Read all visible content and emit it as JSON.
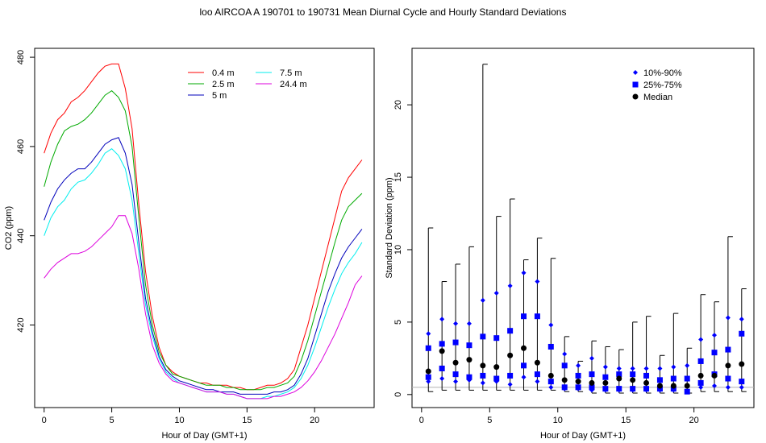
{
  "title": "loo   AIRCOA A   190701 to 190731   Mean Diurnal Cycle and Hourly Standard Deviations",
  "chart_data": [
    {
      "type": "line",
      "xlabel": "Hour of Day (GMT+1)",
      "ylabel": "CO2 (ppm)",
      "xlim": [
        -0.7,
        24.4
      ],
      "ylim": [
        401.5,
        482
      ],
      "xticks": [
        0,
        5,
        10,
        15,
        20
      ],
      "yticks": [
        420,
        440,
        460,
        480
      ],
      "grid": false,
      "legend_position": "top-right",
      "legend_columns": 2,
      "hours": [
        0.0,
        0.5,
        1.0,
        1.5,
        2.0,
        2.5,
        3.0,
        3.5,
        4.0,
        4.5,
        5.0,
        5.5,
        6.0,
        6.5,
        7.0,
        7.5,
        8.0,
        8.5,
        9.0,
        9.5,
        10.0,
        10.5,
        11.0,
        11.5,
        12.0,
        12.5,
        13.0,
        13.5,
        14.0,
        14.5,
        15.0,
        15.5,
        16.0,
        16.5,
        17.0,
        17.5,
        18.0,
        18.5,
        19.0,
        19.5,
        20.0,
        20.5,
        21.0,
        21.5,
        22.0,
        22.5,
        23.0,
        23.5
      ],
      "series": [
        {
          "name": "0.4 m",
          "color": "#ff0000",
          "values": [
            458.5,
            463.0,
            466.0,
            467.5,
            470.0,
            471.0,
            472.5,
            474.5,
            476.5,
            478.0,
            478.5,
            478.5,
            473.0,
            464.0,
            447.0,
            432.0,
            422.0,
            415.0,
            411.0,
            409.5,
            408.5,
            408.0,
            407.5,
            407.0,
            407.0,
            406.5,
            406.5,
            406.5,
            406.0,
            406.0,
            405.5,
            405.5,
            406.0,
            406.5,
            406.5,
            407.0,
            408.0,
            410.0,
            415.0,
            420.0,
            426.0,
            432.0,
            438.0,
            444.0,
            450.0,
            453.0,
            455.0,
            457.0
          ]
        },
        {
          "name": "2.5 m",
          "color": "#00aa00",
          "values": [
            451.0,
            456.5,
            460.5,
            463.5,
            464.5,
            465.0,
            466.0,
            467.5,
            469.5,
            471.5,
            472.5,
            471.0,
            468.0,
            460.0,
            444.0,
            429.0,
            420.0,
            414.0,
            411.0,
            409.0,
            408.5,
            408.0,
            407.5,
            407.0,
            406.5,
            406.5,
            406.5,
            406.0,
            406.0,
            405.5,
            405.5,
            405.5,
            405.5,
            406.0,
            406.0,
            406.5,
            407.0,
            408.5,
            412.0,
            416.5,
            422.0,
            427.5,
            433.0,
            438.5,
            443.5,
            446.5,
            448.0,
            449.5
          ]
        },
        {
          "name": "5 m",
          "color": "#0000bb",
          "values": [
            443.5,
            447.5,
            450.5,
            452.5,
            454.0,
            455.0,
            455.0,
            456.5,
            458.5,
            460.5,
            461.5,
            462.0,
            458.5,
            451.5,
            438.5,
            426.0,
            418.5,
            413.0,
            410.0,
            408.5,
            407.5,
            407.0,
            406.5,
            406.0,
            405.5,
            405.5,
            405.0,
            405.0,
            405.0,
            404.5,
            404.5,
            404.5,
            404.5,
            404.5,
            405.0,
            405.0,
            405.5,
            406.5,
            409.0,
            412.5,
            417.5,
            422.5,
            427.5,
            431.5,
            435.0,
            437.5,
            439.5,
            441.5
          ]
        },
        {
          "name": "7.5 m",
          "color": "#00eeee",
          "values": [
            440.0,
            444.0,
            446.5,
            448.0,
            450.5,
            452.0,
            452.5,
            454.0,
            456.0,
            458.5,
            459.5,
            458.0,
            455.0,
            448.0,
            436.0,
            424.5,
            417.5,
            412.5,
            409.5,
            408.0,
            407.0,
            406.5,
            406.0,
            405.5,
            405.0,
            405.0,
            405.0,
            404.5,
            404.5,
            404.0,
            403.5,
            403.5,
            403.5,
            404.0,
            404.0,
            404.5,
            405.0,
            406.0,
            408.0,
            411.0,
            415.0,
            419.5,
            424.0,
            428.0,
            431.5,
            434.0,
            436.0,
            438.5
          ]
        },
        {
          "name": "24.4 m",
          "color": "#dd00dd",
          "values": [
            430.5,
            432.5,
            434.0,
            435.0,
            436.0,
            436.0,
            436.5,
            437.5,
            439.0,
            440.5,
            442.0,
            444.5,
            444.5,
            440.5,
            432.5,
            422.5,
            415.5,
            411.5,
            409.0,
            407.5,
            407.0,
            406.5,
            406.0,
            405.5,
            405.0,
            405.0,
            405.0,
            404.5,
            404.5,
            404.0,
            403.5,
            403.5,
            403.5,
            403.5,
            404.0,
            404.0,
            404.5,
            405.0,
            406.0,
            407.5,
            409.5,
            412.0,
            415.0,
            418.0,
            421.5,
            425.0,
            429.0,
            431.0
          ]
        }
      ]
    },
    {
      "type": "scatter",
      "xlabel": "Hour of Day (GMT+1)",
      "ylabel": "Standard Deviation (ppm)",
      "xlim": [
        -0.7,
        24.4
      ],
      "ylim": [
        -0.9,
        23.9
      ],
      "xticks": [
        0,
        5,
        10,
        15,
        20
      ],
      "yticks": [
        0,
        5,
        10,
        15,
        20
      ],
      "grid": false,
      "reference_line_y": 0.5,
      "legend_position": "top-right",
      "x": [
        0.5,
        1.5,
        2.5,
        3.5,
        4.5,
        5.5,
        6.5,
        7.5,
        8.5,
        9.5,
        10.5,
        11.5,
        12.5,
        13.5,
        14.5,
        15.5,
        16.5,
        17.5,
        18.5,
        19.5,
        20.5,
        21.5,
        22.5,
        23.5
      ],
      "min": [
        0.2,
        0.3,
        0.3,
        0.3,
        0.3,
        0.3,
        0.3,
        0.3,
        0.3,
        0.3,
        0.2,
        0.2,
        0.1,
        0.1,
        0.1,
        0.1,
        0.1,
        0.1,
        0.1,
        0.1,
        0.2,
        0.2,
        0.2,
        0.2
      ],
      "max": [
        11.5,
        7.8,
        9.0,
        10.2,
        22.8,
        12.3,
        13.5,
        9.3,
        10.8,
        9.4,
        4.0,
        2.3,
        3.7,
        3.3,
        3.1,
        5.0,
        5.4,
        2.7,
        5.6,
        3.2,
        6.9,
        6.4,
        10.9,
        7.3
      ],
      "series": [
        {
          "name": "10%-90%",
          "marker": "diamond",
          "color": "#0000ff",
          "values_low": [
            0.9,
            1.1,
            0.9,
            1.0,
            0.8,
            0.9,
            0.7,
            1.2,
            0.9,
            0.5,
            0.4,
            0.4,
            0.3,
            0.3,
            0.3,
            0.3,
            0.3,
            0.3,
            0.3,
            0.2,
            0.5,
            0.6,
            0.5,
            0.5
          ],
          "values_high": [
            4.2,
            5.2,
            4.9,
            4.9,
            6.5,
            7.0,
            7.5,
            8.4,
            7.8,
            4.8,
            2.8,
            2.0,
            2.5,
            1.9,
            1.8,
            1.8,
            1.8,
            1.8,
            1.9,
            2.0,
            3.8,
            4.1,
            5.3,
            5.2
          ]
        },
        {
          "name": "25%-75%",
          "marker": "square",
          "color": "#0000ff",
          "values_low": [
            1.2,
            1.8,
            1.4,
            1.2,
            1.3,
            1.1,
            1.3,
            2.0,
            1.4,
            0.9,
            0.5,
            0.5,
            0.5,
            0.4,
            0.4,
            0.4,
            0.4,
            0.4,
            0.4,
            0.2,
            0.8,
            1.4,
            1.1,
            0.9
          ],
          "values_high": [
            3.2,
            3.5,
            3.6,
            3.4,
            4.0,
            3.9,
            4.4,
            5.4,
            5.4,
            3.3,
            2.0,
            1.3,
            1.4,
            1.2,
            1.4,
            1.4,
            1.3,
            1.0,
            1.1,
            1.1,
            2.3,
            2.9,
            3.1,
            4.2
          ]
        },
        {
          "name": "Median",
          "marker": "circle",
          "color": "#000000",
          "values": [
            1.6,
            3.0,
            2.2,
            2.4,
            2.0,
            1.9,
            2.7,
            3.2,
            2.2,
            1.3,
            1.0,
            0.9,
            0.8,
            0.8,
            1.1,
            1.0,
            0.8,
            0.6,
            0.6,
            0.6,
            1.3,
            1.3,
            2.0,
            2.1
          ]
        }
      ]
    }
  ]
}
